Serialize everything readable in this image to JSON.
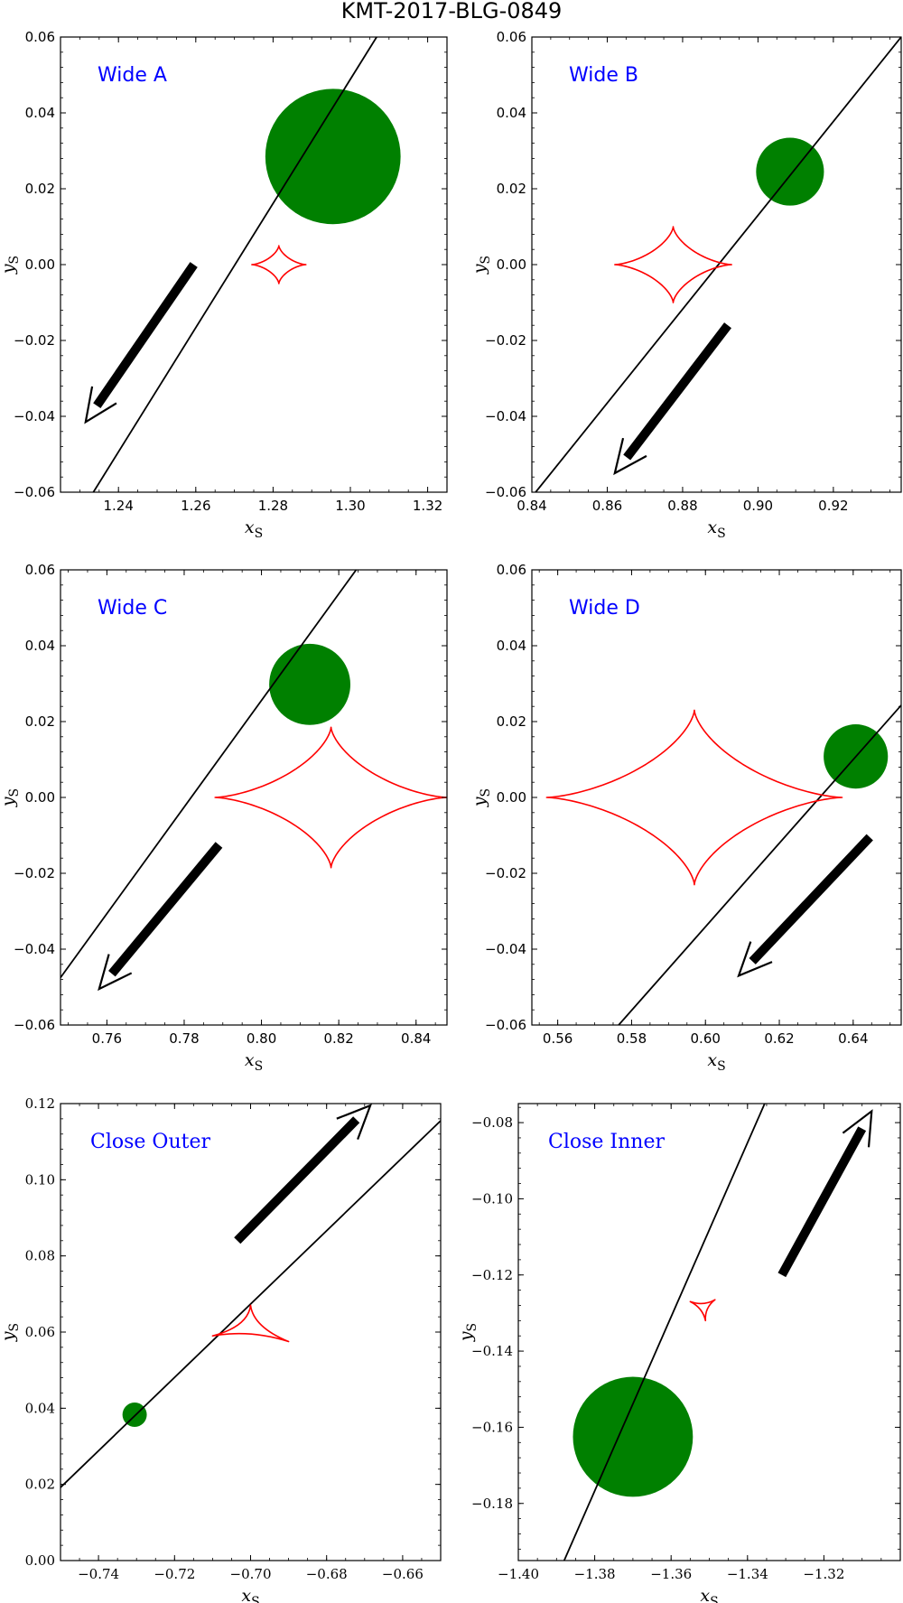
{
  "figure": {
    "title": "KMT-2017-BLG-0849",
    "colors": {
      "caustic": "#ff0000",
      "source": "#008000",
      "trajectory": "#000000",
      "arrow": "#000000",
      "label": "#0000ff"
    }
  },
  "chart_data": [
    {
      "type": "scatter",
      "label": "Wide A",
      "label_position": "top-left",
      "font": "sans",
      "xlabel": "x_S",
      "ylabel": "y_S",
      "xlim": [
        1.225,
        1.325
      ],
      "ylim": [
        -0.06,
        0.06
      ],
      "xticks": [
        1.24,
        1.26,
        1.28,
        1.3,
        1.32
      ],
      "xtick_labels": [
        "1.24",
        "1.26",
        "1.28",
        "1.30",
        "1.32"
      ],
      "yticks": [
        -0.06,
        -0.04,
        -0.02,
        0.0,
        0.02,
        0.04,
        0.06
      ],
      "ytick_labels": [
        "−0.06",
        "−0.04",
        "−0.02",
        "0.00",
        "0.02",
        "0.04",
        "0.06"
      ],
      "source": {
        "x": 1.2955,
        "y": 0.0285,
        "radius": 0.0175
      },
      "trajectory": {
        "x1": 1.2335,
        "y1": -0.06,
        "x2": 1.3068,
        "y2": 0.06
      },
      "arrow": {
        "x1": 1.2595,
        "y1": 0.0,
        "x2": 1.2315,
        "y2": -0.0415
      },
      "caustic": {
        "kind": "astroid",
        "cx": 1.2815,
        "cy": 0.0,
        "hx": 0.007,
        "hy": 0.005
      }
    },
    {
      "type": "scatter",
      "label": "Wide B",
      "label_position": "top-left",
      "font": "sans",
      "xlabel": "x_S",
      "ylabel": "y_S",
      "xlim": [
        0.84,
        0.938
      ],
      "ylim": [
        -0.06,
        0.06
      ],
      "xticks": [
        0.84,
        0.86,
        0.88,
        0.9,
        0.92
      ],
      "xtick_labels": [
        "0.84",
        "0.86",
        "0.88",
        "0.90",
        "0.92"
      ],
      "yticks": [
        -0.06,
        -0.04,
        -0.02,
        0.0,
        0.02,
        0.04,
        0.06
      ],
      "ytick_labels": [
        "−0.06",
        "−0.04",
        "−0.02",
        "0.00",
        "0.02",
        "0.04",
        "0.06"
      ],
      "source": {
        "x": 0.9085,
        "y": 0.0245,
        "radius": 0.009
      },
      "trajectory": {
        "x1": 0.841,
        "y1": -0.06,
        "x2": 0.938,
        "y2": 0.06
      },
      "arrow": {
        "x1": 0.892,
        "y1": -0.016,
        "x2": 0.862,
        "y2": -0.055
      },
      "caustic": {
        "kind": "astroid",
        "cx": 0.8775,
        "cy": 0.0,
        "hx": 0.0155,
        "hy": 0.01
      }
    },
    {
      "type": "scatter",
      "label": "Wide C",
      "label_position": "top-left",
      "font": "sans",
      "xlabel": "x_S",
      "ylabel": "y_S",
      "xlim": [
        0.748,
        0.848
      ],
      "ylim": [
        -0.06,
        0.06
      ],
      "xticks": [
        0.76,
        0.78,
        0.8,
        0.82,
        0.84
      ],
      "xtick_labels": [
        "0.76",
        "0.78",
        "0.80",
        "0.82",
        "0.84"
      ],
      "yticks": [
        -0.06,
        -0.04,
        -0.02,
        0.0,
        0.02,
        0.04,
        0.06
      ],
      "ytick_labels": [
        "−0.06",
        "−0.04",
        "−0.02",
        "0.00",
        "0.02",
        "0.04",
        "0.06"
      ],
      "source": {
        "x": 0.8125,
        "y": 0.0298,
        "radius": 0.0105
      },
      "trajectory": {
        "x1": 0.748,
        "y1": -0.0475,
        "x2": 0.8245,
        "y2": 0.06
      },
      "arrow": {
        "x1": 0.789,
        "y1": -0.0125,
        "x2": 0.758,
        "y2": -0.0505
      },
      "caustic": {
        "kind": "astroid",
        "cx": 0.818,
        "cy": 0.0,
        "hx": 0.03,
        "hy": 0.0185
      }
    },
    {
      "type": "scatter",
      "label": "Wide D",
      "label_position": "top-left",
      "font": "sans",
      "xlabel": "x_S",
      "ylabel": "y_S",
      "xlim": [
        0.553,
        0.653
      ],
      "ylim": [
        -0.06,
        0.06
      ],
      "xticks": [
        0.56,
        0.58,
        0.6,
        0.62,
        0.64
      ],
      "xtick_labels": [
        "0.56",
        "0.58",
        "0.60",
        "0.62",
        "0.64"
      ],
      "yticks": [
        -0.06,
        -0.04,
        -0.02,
        0.0,
        0.02,
        0.04,
        0.06
      ],
      "ytick_labels": [
        "−0.06",
        "−0.04",
        "−0.02",
        "0.00",
        "0.02",
        "0.04",
        "0.06"
      ],
      "source": {
        "x": 0.6407,
        "y": 0.0108,
        "radius": 0.0087
      },
      "trajectory": {
        "x1": 0.5765,
        "y1": -0.06,
        "x2": 0.653,
        "y2": 0.0243
      },
      "arrow": {
        "x1": 0.6445,
        "y1": -0.0105,
        "x2": 0.609,
        "y2": -0.047
      },
      "caustic": {
        "kind": "astroid",
        "cx": 0.597,
        "cy": 0.0,
        "hx": 0.04,
        "hy": 0.023
      }
    },
    {
      "type": "scatter",
      "label": "Close Outer",
      "label_position": "top-left",
      "font": "serif",
      "xlabel": "x_S",
      "ylabel": "y_S",
      "xlim": [
        -0.75,
        -0.65
      ],
      "ylim": [
        0.0,
        0.12
      ],
      "xticks": [
        -0.74,
        -0.72,
        -0.7,
        -0.68,
        -0.66
      ],
      "xtick_labels": [
        "−0.74",
        "−0.72",
        "−0.70",
        "−0.68",
        "−0.66"
      ],
      "yticks": [
        0.0,
        0.02,
        0.04,
        0.06,
        0.08,
        0.1,
        0.12
      ],
      "ytick_labels": [
        "0.00",
        "0.02",
        "0.04",
        "0.06",
        "0.08",
        "0.10",
        "0.12"
      ],
      "source": {
        "x": -0.7305,
        "y": 0.0383,
        "radius": 0.0032
      },
      "trajectory": {
        "x1": -0.75,
        "y1": 0.0192,
        "x2": -0.65,
        "y2": 0.1155
      },
      "arrow": {
        "x1": -0.7035,
        "y1": 0.084,
        "x2": -0.6685,
        "y2": 0.1195
      },
      "caustic": {
        "kind": "triangle",
        "vertices": [
          [
            -0.7,
            0.067
          ],
          [
            -0.71,
            0.059
          ],
          [
            -0.69,
            0.0575
          ]
        ]
      }
    },
    {
      "type": "scatter",
      "label": "Close Inner",
      "label_position": "top-left",
      "font": "serif",
      "xlabel": "x_S",
      "ylabel": "y_S",
      "xlim": [
        -1.4,
        -1.3
      ],
      "ylim": [
        -0.195,
        -0.075
      ],
      "xticks": [
        -1.4,
        -1.38,
        -1.36,
        -1.34,
        -1.32
      ],
      "xtick_labels": [
        "−1.40",
        "−1.38",
        "−1.36",
        "−1.34",
        "−1.32"
      ],
      "yticks": [
        -0.18,
        -0.16,
        -0.14,
        -0.12,
        -0.1,
        -0.08
      ],
      "ytick_labels": [
        "−0.18",
        "−0.16",
        "−0.14",
        "−0.12",
        "−0.10",
        "−0.08"
      ],
      "source": {
        "x": -1.37,
        "y": -0.1625,
        "radius": 0.0157
      },
      "trajectory": {
        "x1": -1.388,
        "y1": -0.195,
        "x2": -1.3355,
        "y2": -0.075
      },
      "arrow": {
        "x1": -1.331,
        "y1": -0.12,
        "x2": -1.3075,
        "y2": -0.077
      },
      "caustic": {
        "kind": "triangle",
        "vertices": [
          [
            -1.355,
            -0.127
          ],
          [
            -1.3485,
            -0.1265
          ],
          [
            -1.351,
            -0.132
          ]
        ]
      }
    }
  ]
}
